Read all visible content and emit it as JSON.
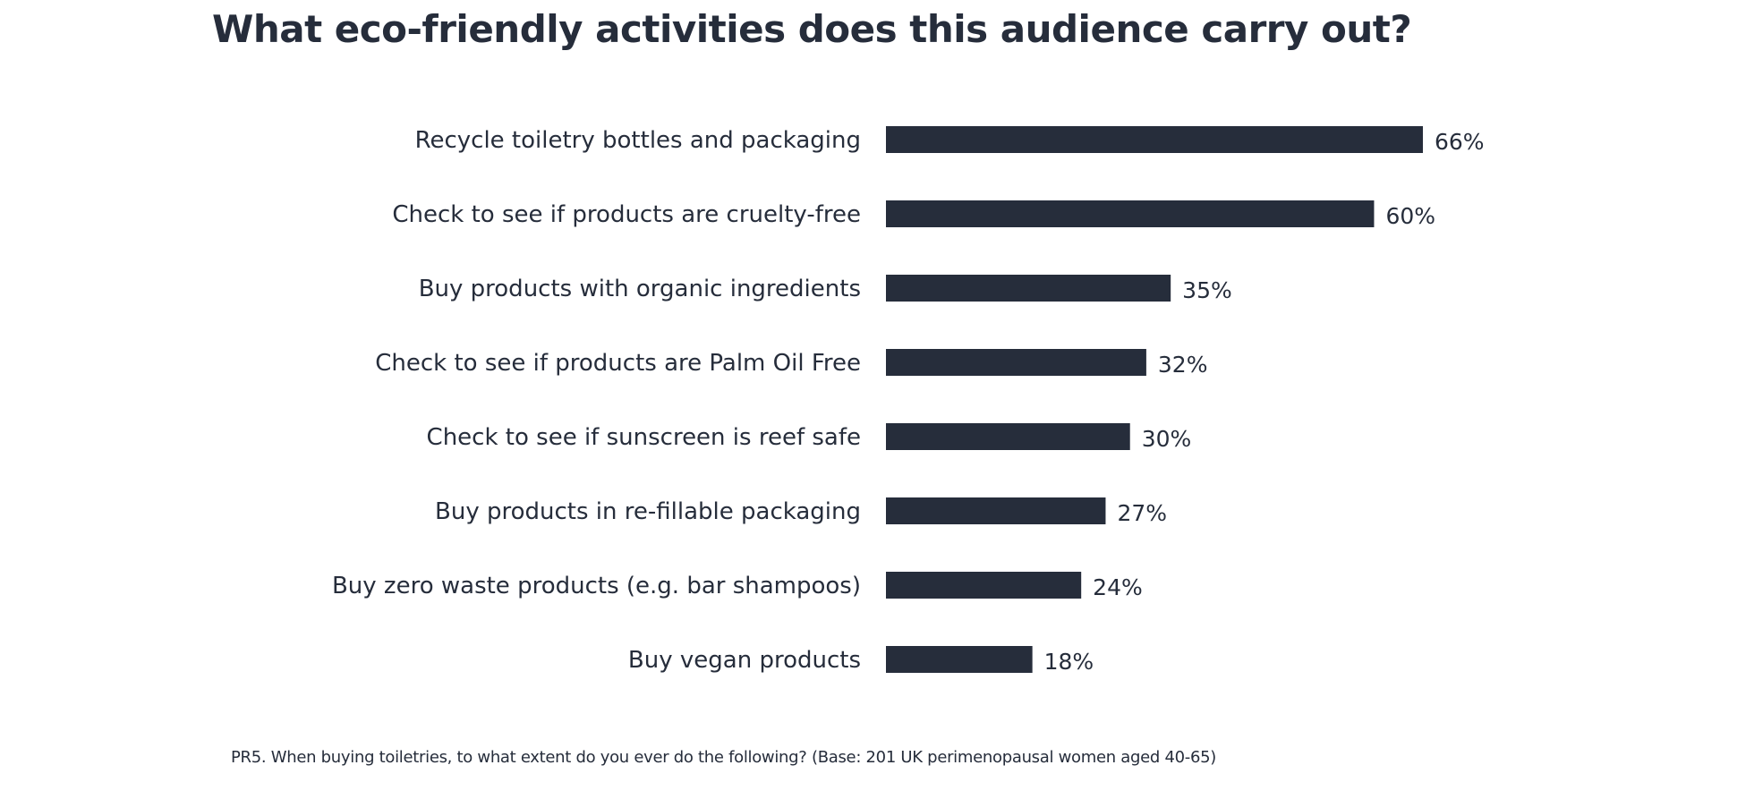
{
  "page": {
    "title": "What eco-friendly activities does this audience carry out?",
    "footnote": "PR5. When buying toiletries, to what extent do you ever do the following? (Base: 201 UK perimenopausal women aged 40-65)"
  },
  "chart_data": {
    "type": "bar",
    "orientation": "horizontal",
    "title": "What eco-friendly activities does this audience carry out?",
    "categories": [
      "Recycle toiletry bottles and packaging",
      "Check to see if products are cruelty-free",
      "Buy products with organic ingredients",
      "Check to see if products are Palm Oil Free",
      "Check to see if sunscreen is reef safe",
      "Buy products in re-fillable packaging",
      "Buy zero waste products (e.g. bar shampoos)",
      "Buy vegan products"
    ],
    "values": [
      66,
      60,
      35,
      32,
      30,
      27,
      24,
      18
    ],
    "value_labels": [
      "66%",
      "60%",
      "35%",
      "32%",
      "30%",
      "27%",
      "24%",
      "18%"
    ],
    "value_unit": "%",
    "xlabel": "",
    "ylabel": "",
    "xlim": [
      0,
      66
    ],
    "grid": false,
    "legend": "none",
    "bar_color": "#262d3b",
    "text_color": "#262d3b"
  }
}
